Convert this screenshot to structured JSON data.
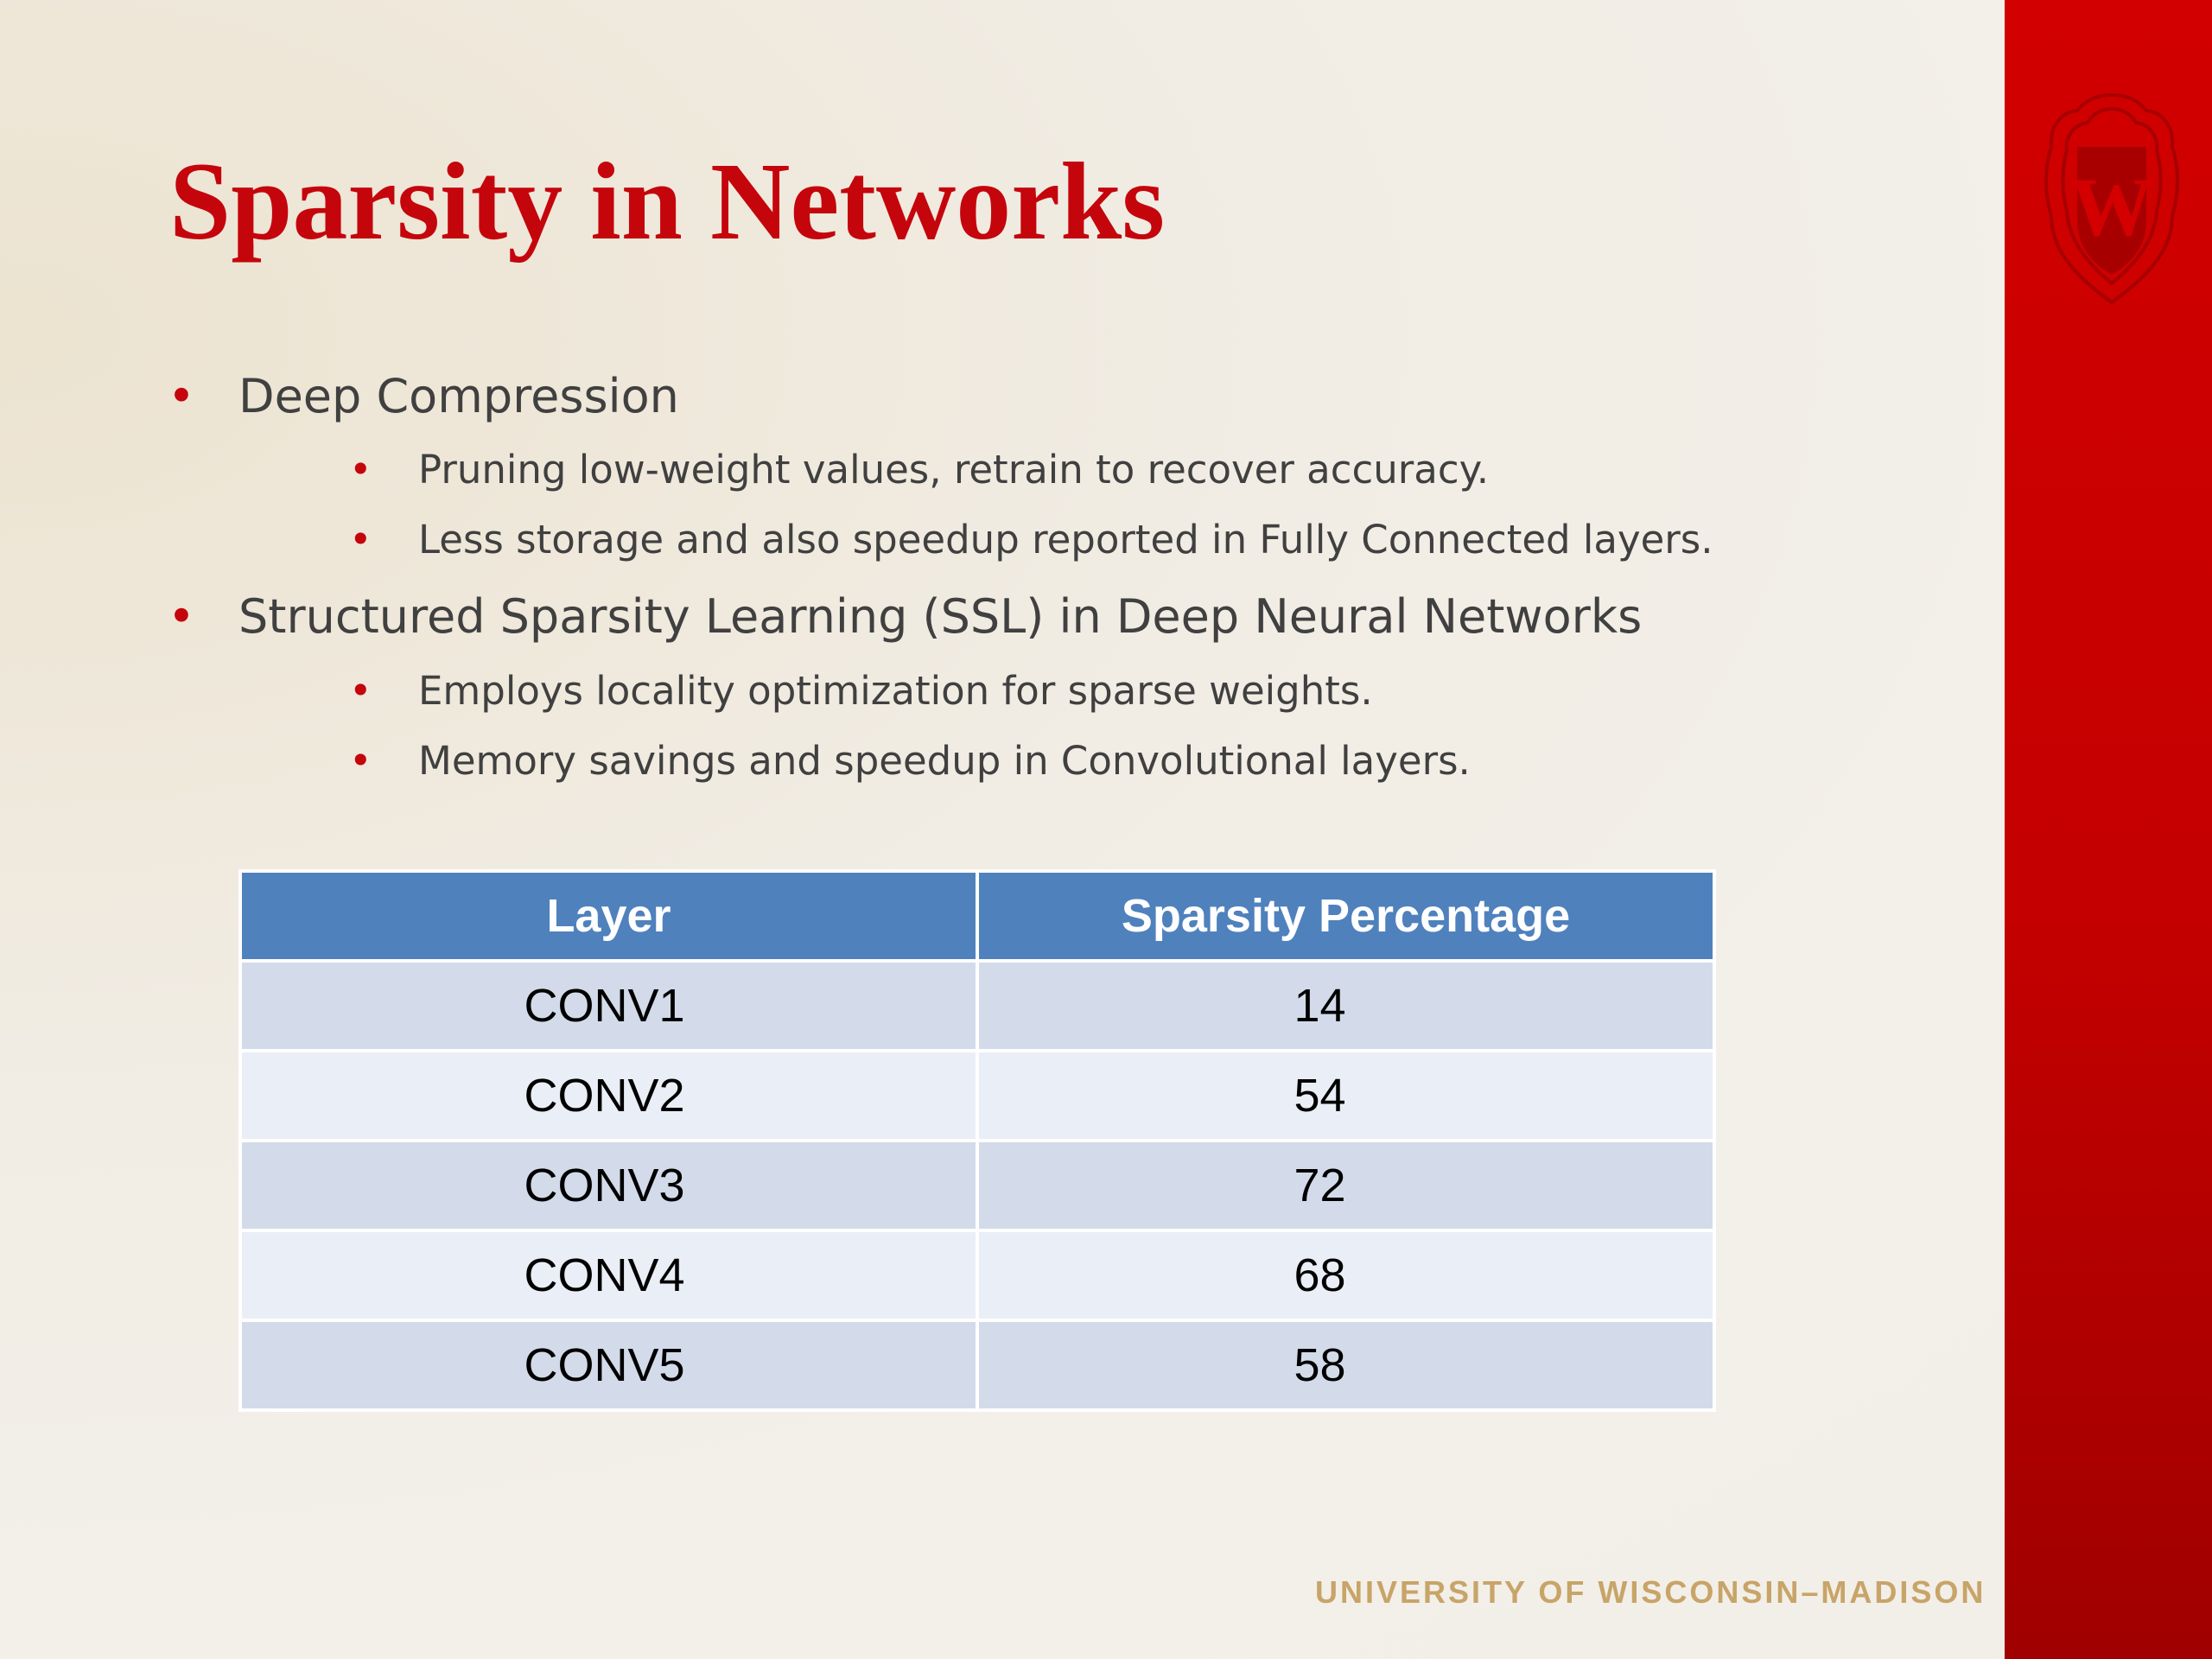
{
  "slide": {
    "title": "Sparsity in Networks",
    "bullet_glyph": "•",
    "bullets": [
      {
        "text": "Deep Compression",
        "sub": [
          "Pruning low-weight values, retrain to recover accuracy.",
          "Less storage and also speedup reported in Fully Connected layers."
        ]
      },
      {
        "text": "Structured Sparsity Learning (SSL) in Deep Neural Networks",
        "sub": [
          "Employs locality optimization for sparse weights.",
          "Memory savings and speedup in Convolutional layers."
        ]
      }
    ],
    "table": {
      "headers": [
        "Layer",
        "Sparsity Percentage"
      ],
      "rows": [
        [
          "CONV1",
          "14"
        ],
        [
          "CONV2",
          "54"
        ],
        [
          "CONV3",
          "72"
        ],
        [
          "CONV4",
          "68"
        ],
        [
          "CONV5",
          "58"
        ]
      ]
    },
    "footer": "UNIVERSITY OF WISCONSIN–MADISON",
    "logo": {
      "icon": "uw-crest-icon",
      "letter": "W"
    }
  },
  "colors": {
    "title": "#c5050c",
    "sidebar": "#c40000",
    "table_header": "#4f81bd",
    "row_odd": "#d3dbea",
    "row_even": "#eaeef6",
    "footer": "#c8a468"
  }
}
